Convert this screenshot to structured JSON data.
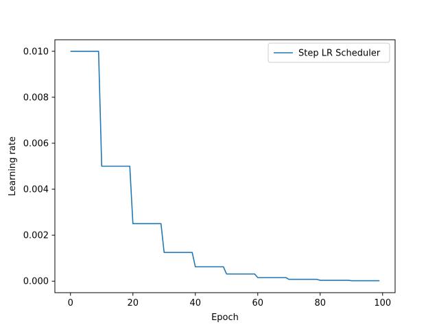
{
  "chart_data": {
    "type": "line",
    "title": "",
    "xlabel": "Epoch",
    "ylabel": "Learning rate",
    "xlim": [
      -5,
      104
    ],
    "ylim": [
      -0.0005,
      0.0105
    ],
    "xticks": [
      0,
      20,
      40,
      60,
      80,
      100
    ],
    "xtick_labels": [
      "0",
      "20",
      "40",
      "60",
      "80",
      "100"
    ],
    "yticks": [
      0.0,
      0.002,
      0.004,
      0.006,
      0.008,
      0.01
    ],
    "ytick_labels": [
      "0.000",
      "0.002",
      "0.004",
      "0.006",
      "0.008",
      "0.010"
    ],
    "grid": false,
    "legend_position": "top-right",
    "series": [
      {
        "name": "Step LR Scheduler",
        "color": "#1f77b4",
        "x": [
          0,
          9,
          10,
          19,
          20,
          29,
          30,
          39,
          40,
          49,
          50,
          59,
          60,
          69,
          70,
          79,
          80,
          89,
          90,
          99
        ],
        "y": [
          0.01,
          0.01,
          0.005,
          0.005,
          0.0025,
          0.0025,
          0.00125,
          0.00125,
          0.000625,
          0.000625,
          0.0003125,
          0.0003125,
          0.00015625,
          0.00015625,
          7.8125e-05,
          7.8125e-05,
          3.90625e-05,
          3.90625e-05,
          1.953125e-05,
          1.953125e-05
        ]
      }
    ]
  }
}
